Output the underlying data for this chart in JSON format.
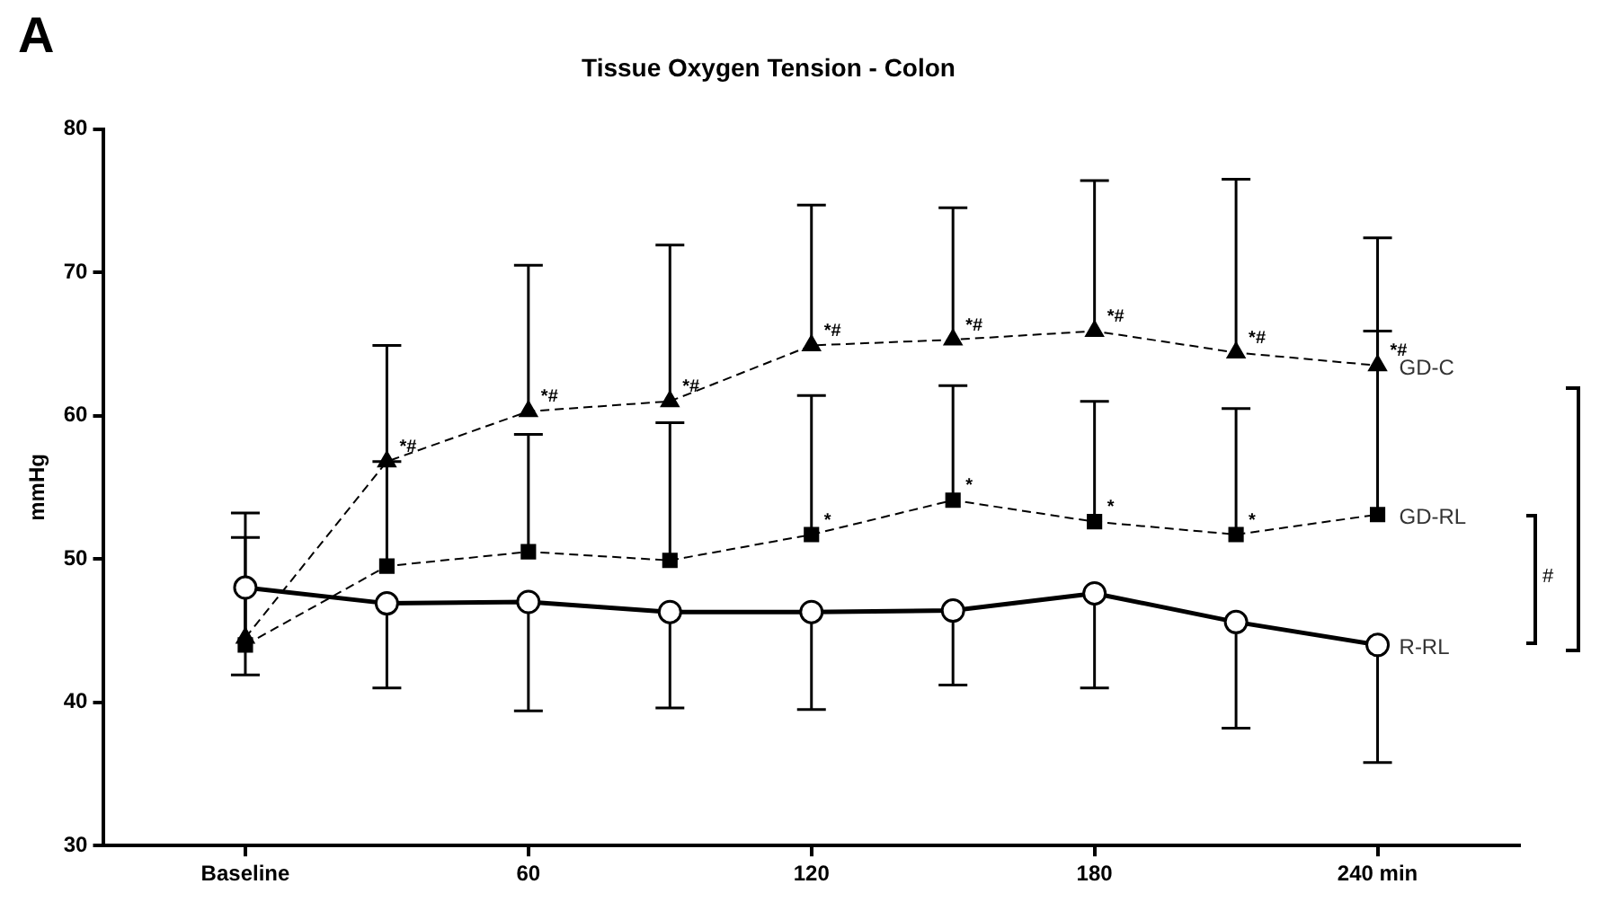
{
  "chart_data": {
    "type": "line",
    "title": "Tissue Oxygen Tension - Colon",
    "ylabel": "mmHg",
    "x": [
      0,
      30,
      60,
      90,
      120,
      150,
      180,
      210,
      240
    ],
    "xlim": [
      -30,
      270
    ],
    "xticks": [
      {
        "value": 0,
        "label": "Baseline"
      },
      60,
      120,
      180,
      {
        "value": 240,
        "label": "240 min"
      }
    ],
    "ylim": [
      30,
      80
    ],
    "yticks": [
      30,
      40,
      50,
      60,
      70,
      80
    ],
    "series": [
      {
        "name": "GD-C",
        "color": "#000000",
        "marker": "triangle",
        "line_style": "dashed",
        "values": [
          44.5,
          56.8,
          60.3,
          61.0,
          64.9,
          65.3,
          65.9,
          64.4,
          63.5
        ],
        "errors": [
          [
            44.5,
            53.2
          ],
          [
            56.8,
            64.9
          ],
          [
            60.3,
            70.5
          ],
          [
            61.0,
            71.9
          ],
          [
            64.9,
            74.7
          ],
          [
            65.3,
            74.5
          ],
          [
            65.9,
            76.4
          ],
          [
            64.4,
            76.5
          ],
          [
            63.5,
            72.4
          ]
        ]
      },
      {
        "name": "GD-RL",
        "color": "#000000",
        "marker": "square",
        "line_style": "dashed",
        "values": [
          44.0,
          49.5,
          50.5,
          49.9,
          51.7,
          54.1,
          52.6,
          51.7,
          53.1
        ],
        "errors": [
          [
            44.0,
            51.5
          ],
          [
            49.5,
            56.8
          ],
          [
            50.5,
            58.7
          ],
          [
            49.9,
            59.5
          ],
          [
            51.7,
            61.4
          ],
          [
            54.1,
            62.1
          ],
          [
            52.6,
            61.0
          ],
          [
            51.7,
            60.5
          ],
          [
            53.1,
            65.9
          ]
        ]
      },
      {
        "name": "R-RL",
        "color": "#000000",
        "marker": "circle",
        "line_style": "solid",
        "values": [
          48.0,
          46.9,
          47.0,
          46.3,
          46.3,
          46.4,
          47.6,
          45.6,
          44.0
        ],
        "errors": [
          [
            41.9,
            48.0
          ],
          [
            41.0,
            46.9
          ],
          [
            39.4,
            47.0
          ],
          [
            39.6,
            46.3
          ],
          [
            39.5,
            46.3
          ],
          [
            41.2,
            46.4
          ],
          [
            41.0,
            47.6
          ],
          [
            38.2,
            45.6
          ],
          [
            35.8,
            44.0
          ]
        ]
      }
    ],
    "annotations": [
      "A",
      {
        "text": "*#",
        "x": 30,
        "y": 56.8
      },
      {
        "text": "*#",
        "x": 60,
        "y": 60.3
      },
      {
        "text": "*#",
        "x": 90,
        "y": 61.0
      },
      {
        "text": "*#",
        "x": 120,
        "y": 64.9
      },
      {
        "text": "*#",
        "x": 150,
        "y": 65.3
      },
      {
        "text": "*#",
        "x": 180,
        "y": 65.9
      },
      {
        "text": "*#",
        "x": 210,
        "y": 64.4
      },
      {
        "text": "*#",
        "x": 240,
        "y": 63.5
      },
      {
        "text": "*",
        "x": 120,
        "y": 51.7
      },
      {
        "text": "*",
        "x": 150,
        "y": 54.1
      },
      {
        "text": "*",
        "x": 180,
        "y": 52.6
      },
      {
        "text": "*",
        "x": 210,
        "y": 51.7
      },
      "#"
    ]
  }
}
